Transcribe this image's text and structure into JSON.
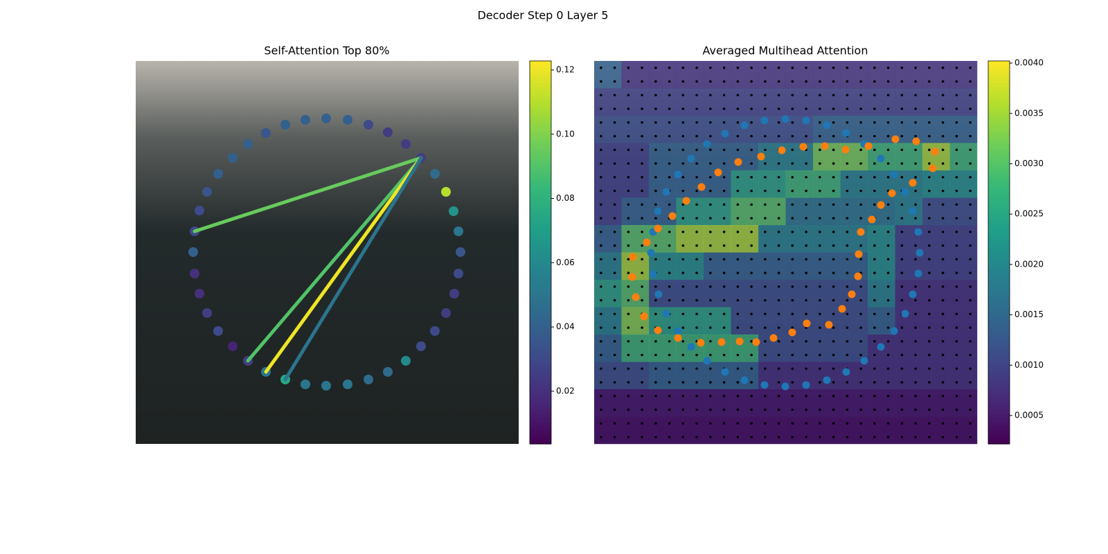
{
  "title": "Decoder Step 0 Layer 5",
  "chart_data": [
    {
      "type": "scatter",
      "title": "Self-Attention Top 80%",
      "colormap": "viridis",
      "xlim": [
        0,
        553
      ],
      "ylim": [
        553,
        0
      ],
      "x": [
        188,
        216,
        245,
        275,
        306,
        336,
        364,
        390,
        412,
        432,
        448,
        459,
        466,
        469,
        466,
        460,
        448,
        432,
        412,
        390,
        364,
        336,
        306,
        275,
        245,
        216,
        188,
        162,
        140,
        119,
        103,
        92,
        85,
        83,
        85,
        92,
        103,
        119,
        140,
        162
      ],
      "y": [
        104,
        92,
        85,
        83,
        85,
        92,
        103,
        120,
        140,
        163,
        189,
        217,
        246,
        276,
        307,
        336,
        364,
        390,
        412,
        433,
        449,
        460,
        467,
        469,
        467,
        460,
        449,
        433,
        412,
        390,
        364,
        336,
        307,
        276,
        246,
        216,
        189,
        163,
        140,
        120
      ],
      "values": [
        0.035,
        0.04,
        0.04,
        0.04,
        0.04,
        0.03,
        0.025,
        0.025,
        0.025,
        0.045,
        0.11,
        0.065,
        0.05,
        0.035,
        0.03,
        0.025,
        0.025,
        0.03,
        0.03,
        0.06,
        0.045,
        0.045,
        0.05,
        0.05,
        0.05,
        0.075,
        0.05,
        0.025,
        0.015,
        0.03,
        0.025,
        0.02,
        0.02,
        0.04,
        0.03,
        0.03,
        0.035,
        0.04,
        0.04,
        0.04
      ],
      "lines": {
        "from": [
          8,
          8,
          8,
          8
        ],
        "to": [
          34,
          27,
          26,
          25
        ],
        "values": [
          0.095,
          0.09,
          0.12,
          0.05
        ]
      },
      "clim": [
        0.0036,
        0.1228
      ],
      "cticks": [
        0.02,
        0.04,
        0.06,
        0.08,
        {
          "value": 0.1,
          "label": "0.10"
        },
        0.12
      ]
    },
    {
      "type": "heatmap",
      "title": "Averaged Multihead Attention",
      "colormap": "viridis",
      "xlim": [
        0,
        553
      ],
      "ylim": [
        553,
        0
      ],
      "values": [
        [
          0.0015,
          0.0008,
          0.0008,
          0.0008,
          0.0008,
          0.0008,
          0.0008,
          0.0008,
          0.0008,
          0.0008,
          0.0008,
          0.0008,
          0.0008,
          0.0008
        ],
        [
          0.001,
          0.001,
          0.001,
          0.001,
          0.001,
          0.001,
          0.001,
          0.001,
          0.001,
          0.001,
          0.001,
          0.001,
          0.001,
          0.001
        ],
        [
          0.0012,
          0.0012,
          0.0012,
          0.0012,
          0.0012,
          0.0012,
          0.0012,
          0.0012,
          0.0015,
          0.0015,
          0.0015,
          0.0015,
          0.0015,
          0.0015
        ],
        [
          0.001,
          0.001,
          0.0015,
          0.0015,
          0.0015,
          0.0015,
          0.002,
          0.002,
          0.0032,
          0.0032,
          0.0028,
          0.0028,
          0.0035,
          0.0028
        ],
        [
          0.001,
          0.001,
          0.0015,
          0.0015,
          0.0015,
          0.0025,
          0.0025,
          0.0028,
          0.0028,
          0.002,
          0.002,
          0.002,
          0.0022,
          0.0022
        ],
        [
          0.001,
          0.0015,
          0.0015,
          0.0025,
          0.0025,
          0.003,
          0.003,
          0.0018,
          0.0018,
          0.0018,
          0.0018,
          0.002,
          0.0012,
          0.0012
        ],
        [
          0.0015,
          0.003,
          0.003,
          0.0035,
          0.0035,
          0.0035,
          0.002,
          0.002,
          0.002,
          0.002,
          0.0022,
          0.001,
          0.001,
          0.001
        ],
        [
          0.002,
          0.0035,
          0.0022,
          0.0022,
          0.0015,
          0.0015,
          0.0015,
          0.0015,
          0.0015,
          0.0015,
          0.0022,
          0.001,
          0.001,
          0.001
        ],
        [
          0.0025,
          0.003,
          0.0012,
          0.0012,
          0.0012,
          0.0012,
          0.0012,
          0.0012,
          0.0012,
          0.0012,
          0.002,
          0.0008,
          0.0008,
          0.0008
        ],
        [
          0.002,
          0.0033,
          0.0025,
          0.0025,
          0.0025,
          0.0012,
          0.0012,
          0.0012,
          0.0012,
          0.0012,
          0.0015,
          0.0008,
          0.0008,
          0.0008
        ],
        [
          0.0015,
          0.0028,
          0.0028,
          0.0028,
          0.0028,
          0.0028,
          0.0012,
          0.0012,
          0.0012,
          0.0012,
          0.0008,
          0.0008,
          0.0008,
          0.0008
        ],
        [
          0.0012,
          0.0012,
          0.0015,
          0.0015,
          0.0015,
          0.0015,
          0.0008,
          0.0008,
          0.0008,
          0.0008,
          0.0008,
          0.0008,
          0.0008,
          0.0008
        ],
        [
          0.0005,
          0.0005,
          0.0005,
          0.0005,
          0.0005,
          0.0005,
          0.0005,
          0.0005,
          0.0005,
          0.0005,
          0.0005,
          0.0005,
          0.0005,
          0.0005
        ],
        [
          0.0004,
          0.0004,
          0.0004,
          0.0004,
          0.0004,
          0.0004,
          0.0004,
          0.0004,
          0.0004,
          0.0004,
          0.0004,
          0.0004,
          0.0004,
          0.0004
        ]
      ],
      "series": [
        {
          "color": "#1f77b4",
          "x": [
            163,
            189,
            217,
            246,
            276,
            306,
            336,
            364,
            390,
            414,
            433,
            449,
            460,
            468,
            470,
            468,
            460,
            449,
            433,
            414,
            390,
            364,
            336,
            306,
            276,
            246,
            217,
            189,
            163,
            140,
            121,
            104,
            93,
            85,
            82,
            85,
            92,
            104,
            121,
            140
          ],
          "y": [
            120,
            105,
            93,
            86,
            84,
            86,
            93,
            104,
            120,
            141,
            164,
            189,
            217,
            247,
            277,
            307,
            337,
            365,
            390,
            413,
            433,
            449,
            461,
            468,
            470,
            468,
            461,
            449,
            433,
            413,
            390,
            365,
            337,
            308,
            277,
            247,
            217,
            189,
            164,
            141
          ]
        },
        {
          "color": "#ff7f0e",
          "x": [
            56,
            55,
            60,
            72,
            92,
            121,
            154,
            184,
            210,
            234,
            259,
            286,
            307,
            339,
            358,
            372,
            381,
            382,
            385,
            401,
            414,
            430,
            460,
            489,
            492,
            465,
            435,
            396,
            363,
            333,
            302,
            271,
            241,
            208,
            179,
            155,
            133,
            113,
            92,
            76
          ],
          "y": [
            283,
            312,
            341,
            369,
            389,
            400,
            407,
            406,
            405,
            406,
            400,
            392,
            379,
            381,
            358,
            337,
            311,
            279,
            247,
            229,
            208,
            191,
            176,
            155,
            131,
            116,
            113,
            123,
            128,
            123,
            124,
            129,
            138,
            146,
            161,
            182,
            202,
            224,
            242,
            262
          ]
        }
      ],
      "clim": [
        0.000218,
        0.004021
      ],
      "cticks": [
        0.0005,
        {
          "value": 0.001,
          "label": "0.0010"
        },
        0.0015,
        {
          "value": 0.002,
          "label": "0.0020"
        },
        0.0025,
        {
          "value": 0.003,
          "label": "0.0030"
        },
        0.0035,
        {
          "value": 0.004,
          "label": "0.0040"
        }
      ]
    }
  ]
}
